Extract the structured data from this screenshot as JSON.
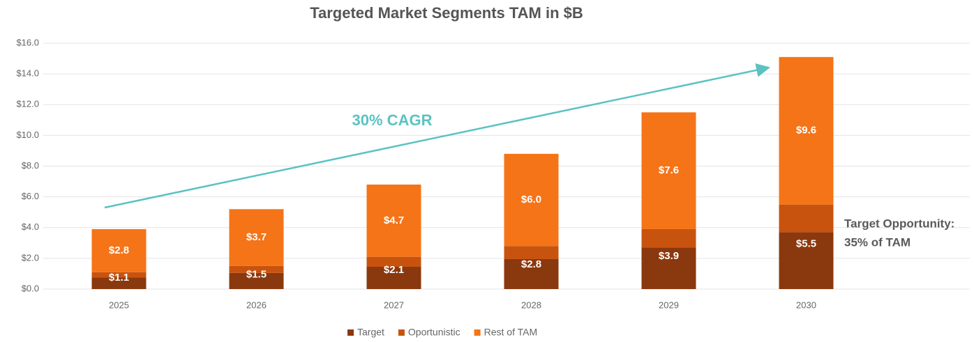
{
  "chart_data": {
    "type": "bar",
    "stacked": true,
    "title": "Targeted Market Segments TAM in $B",
    "categories": [
      "2025",
      "2026",
      "2027",
      "2028",
      "2029",
      "2030"
    ],
    "series": [
      {
        "name": "Target",
        "color": "#8a380e",
        "values": [
          0.75,
          1.05,
          1.45,
          1.95,
          2.7,
          3.7
        ]
      },
      {
        "name": "Oportunistic",
        "color": "#c8530f",
        "values": [
          0.35,
          0.45,
          0.65,
          0.85,
          1.2,
          1.8
        ]
      },
      {
        "name": "Rest of TAM",
        "color": "#f57417",
        "values": [
          2.8,
          3.7,
          4.7,
          6.0,
          7.6,
          9.6
        ],
        "value_labels": [
          "$2.8",
          "$3.7",
          "$4.7",
          "$6.0",
          "$7.6",
          "$9.6"
        ]
      }
    ],
    "combined_labels": {
      "values": [
        1.1,
        1.5,
        2.1,
        2.8,
        3.9,
        5.5
      ],
      "value_labels": [
        "$1.1",
        "$1.5",
        "$2.1",
        "$2.8",
        "$3.9",
        "$5.5"
      ]
    },
    "ylim": [
      0,
      16
    ],
    "yticks": [
      {
        "value": 0,
        "label": "$0.0"
      },
      {
        "value": 2,
        "label": "$2.0"
      },
      {
        "value": 4,
        "label": "$4.0"
      },
      {
        "value": 6,
        "label": "$6.0"
      },
      {
        "value": 8,
        "label": "$8.0"
      },
      {
        "value": 10,
        "label": "$10.0"
      },
      {
        "value": 12,
        "label": "$12.0"
      },
      {
        "value": 14,
        "label": "$14.0"
      },
      {
        "value": 16,
        "label": "$16.0"
      }
    ],
    "grid": true,
    "legend": "bottom",
    "annotations": [
      "30% CAGR",
      "Target Opportunity:",
      "35% of TAM"
    ]
  }
}
